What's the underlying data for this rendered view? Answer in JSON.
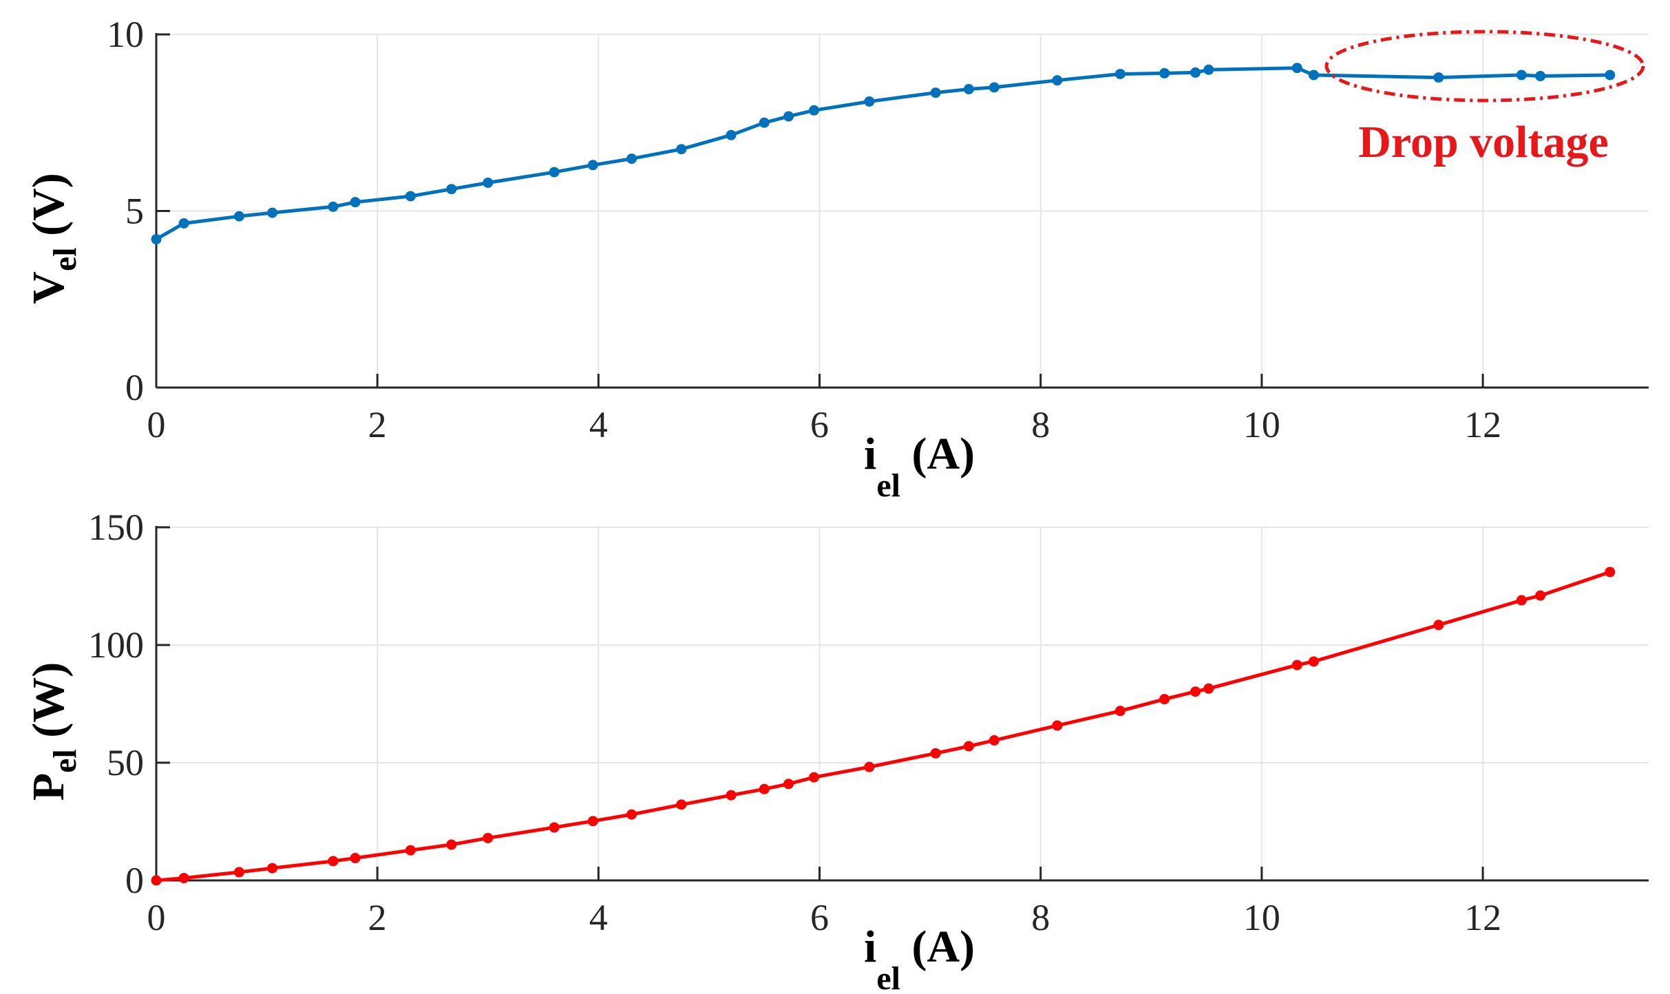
{
  "chart_data": [
    {
      "type": "line",
      "x": [
        0,
        0.25,
        0.75,
        1.05,
        1.6,
        1.8,
        2.3,
        2.67,
        3.0,
        3.6,
        3.95,
        4.3,
        4.75,
        5.2,
        5.5,
        5.72,
        5.95,
        6.45,
        7.05,
        7.35,
        7.58,
        8.15,
        8.72,
        9.12,
        9.4,
        9.52,
        10.32,
        10.47,
        11.6,
        12.35,
        12.52,
        13.15
      ],
      "series": [
        {
          "name": "",
          "values": [
            4.2,
            4.65,
            4.85,
            4.95,
            5.12,
            5.25,
            5.42,
            5.62,
            5.8,
            6.1,
            6.3,
            6.48,
            6.75,
            7.15,
            7.5,
            7.68,
            7.85,
            8.1,
            8.35,
            8.45,
            8.5,
            8.7,
            8.88,
            8.9,
            8.92,
            9.0,
            9.05,
            8.85,
            8.78,
            8.85,
            8.82,
            8.85
          ],
          "color": "#0072BD"
        }
      ],
      "xlim": [
        0,
        13.5
      ],
      "ylim": [
        0,
        10
      ],
      "xticks": [
        0,
        2,
        4,
        6,
        8,
        10,
        12
      ],
      "yticks": [
        0,
        5,
        10
      ],
      "grid": true,
      "xlabel": {
        "main": "i",
        "sub": "el",
        "unit": " (A)"
      },
      "ylabel": {
        "main": "V",
        "sub": "el",
        "unit": " (V)"
      },
      "annotations": [
        {
          "text": "Drop voltage",
          "color": "#E8171A",
          "style": "dash-dot ellipse around points x 10.1–13.5"
        }
      ]
    },
    {
      "type": "line",
      "x": [
        0,
        0.25,
        0.75,
        1.05,
        1.6,
        1.8,
        2.3,
        2.67,
        3.0,
        3.6,
        3.95,
        4.3,
        4.75,
        5.2,
        5.5,
        5.72,
        5.95,
        6.45,
        7.05,
        7.35,
        7.58,
        8.15,
        8.72,
        9.12,
        9.4,
        9.52,
        10.32,
        10.47,
        11.6,
        12.35,
        12.52,
        13.15
      ],
      "series": [
        {
          "name": "",
          "values": [
            0,
            1,
            3.5,
            5.2,
            8.2,
            9.5,
            12.8,
            15.2,
            18,
            22.5,
            25.2,
            28,
            32.2,
            36.2,
            38.8,
            41,
            43.8,
            48.2,
            54,
            57,
            59.5,
            65.8,
            72,
            77,
            80.2,
            81.5,
            91.5,
            93,
            108.5,
            119,
            121,
            131
          ],
          "color": "#FF0000"
        }
      ],
      "xlim": [
        0,
        13.5
      ],
      "ylim": [
        0,
        150
      ],
      "xticks": [
        0,
        2,
        4,
        6,
        8,
        10,
        12
      ],
      "yticks": [
        0,
        50,
        100,
        150
      ],
      "grid": true,
      "xlabel": {
        "main": "i",
        "sub": "el",
        "unit": " (A)"
      },
      "ylabel": {
        "main": "P",
        "sub": "el",
        "unit": " (W)"
      }
    }
  ]
}
